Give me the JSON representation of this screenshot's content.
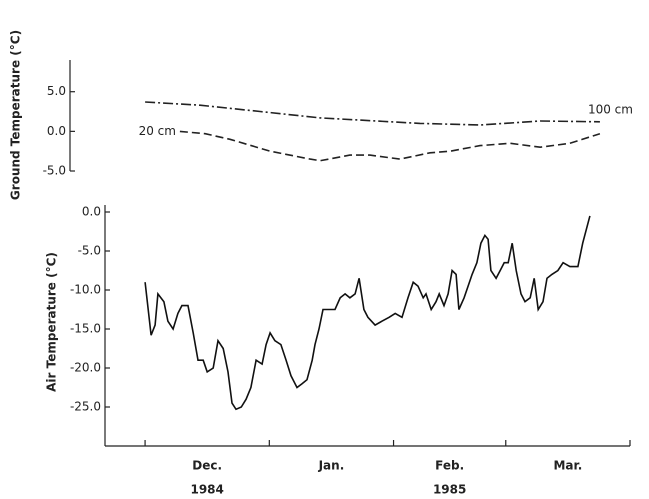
{
  "chart_data": [
    {
      "type": "line",
      "ylabel": "Ground Temperature (°C)",
      "ylim": [
        -5,
        9
      ],
      "yticks": [
        {
          "value": 5,
          "label": "5.0"
        },
        {
          "value": 0,
          "label": "0.0"
        },
        {
          "value": -5,
          "label": "-5.0"
        }
      ],
      "xlim": [
        -10,
        121
      ],
      "series": [
        {
          "name": "100 cm",
          "color": "#222222",
          "linestyle": "dashdot",
          "x": [
            0,
            13.7,
            28.7,
            43.7,
            68.6,
            83.6,
            98.6,
            113.5
          ],
          "values": [
            3.7,
            3.3,
            2.5,
            1.7,
            1.0,
            0.8,
            1.3,
            1.2
          ]
        },
        {
          "name": "20 cm",
          "color": "#222222",
          "linestyle": "dashed",
          "x": [
            8.7,
            15,
            21.2,
            31.2,
            41.2,
            43.7,
            51.1,
            56.1,
            63.6,
            71.1,
            76.1,
            83.6,
            91.1,
            98.6,
            106,
            113.5
          ],
          "values": [
            0,
            -0.3,
            -1,
            -2.5,
            -3.5,
            -3.7,
            -3,
            -3,
            -3.5,
            -2.7,
            -2.5,
            -1.8,
            -1.5,
            -2,
            -1.5,
            -0.3
          ]
        }
      ]
    },
    {
      "type": "line",
      "ylabel": "Air Temperature (°C)",
      "ylim": [
        -30,
        0
      ],
      "yticks": [
        {
          "value": 0,
          "label": "0.0"
        },
        {
          "value": -5,
          "label": "-5.0"
        },
        {
          "value": -10,
          "label": "-10.0"
        },
        {
          "value": -15,
          "label": "-15.0"
        },
        {
          "value": -20,
          "label": "-20.0"
        },
        {
          "value": -25,
          "label": "-25.0"
        }
      ],
      "xlim": [
        -10,
        121
      ],
      "xticks": [
        0,
        31,
        62,
        90,
        121
      ],
      "categories": [
        "Dec.",
        "Jan.",
        "Feb.",
        "Mar."
      ],
      "category_years": [
        "1984",
        null,
        "1985",
        null
      ],
      "series": [
        {
          "name": "Air",
          "color": "#111111",
          "x": [
            0,
            1.5,
            2.5,
            3.2,
            4.7,
            5.7,
            7,
            8.2,
            9.2,
            10.7,
            12,
            13.2,
            14.5,
            15.5,
            17,
            18.2,
            19.5,
            20.7,
            21.7,
            22.7,
            24,
            25.2,
            26.4,
            27.7,
            29.2,
            30.2,
            31.2,
            32.4,
            33.9,
            35.2,
            36.4,
            37.9,
            39.2,
            40.4,
            41.7,
            42.4,
            43.4,
            44.4,
            45.7,
            47.4,
            48.7,
            49.9,
            51.1,
            52.4,
            53.4,
            54.6,
            55.6,
            57.4,
            59.1,
            60.9,
            62.4,
            64.1,
            65.6,
            66.9,
            68.1,
            69.4,
            70.1,
            71.4,
            72.6,
            73.4,
            74.6,
            75.6,
            76.6,
            77.6,
            78.3,
            79.6,
            80.6,
            81.6,
            82.8,
            83.8,
            84.8,
            85.6,
            86.3,
            87.6,
            88.6,
            89.6,
            90.6,
            91.6,
            92.6,
            93.8,
            94.8,
            96.1,
            97.1,
            98.1,
            99.3,
            100.3,
            101.5,
            103,
            104.3,
            106,
            108,
            109.2,
            111
          ],
          "values": [
            -9,
            -15.8,
            -14.5,
            -10.5,
            -11.5,
            -14,
            -15,
            -13,
            -12,
            -12,
            -15.5,
            -19,
            -19,
            -20.5,
            -20,
            -16.5,
            -17.5,
            -20.5,
            -24.5,
            -25.3,
            -25,
            -24,
            -22.5,
            -19,
            -19.5,
            -17,
            -15.5,
            -16.5,
            -17,
            -19,
            -21,
            -22.5,
            -22,
            -21.5,
            -19,
            -17,
            -15,
            -12.5,
            -12.5,
            -12.5,
            -11,
            -10.5,
            -11,
            -10.5,
            -8.5,
            -12.5,
            -13.5,
            -14.5,
            -14,
            -13.5,
            -13,
            -13.5,
            -11,
            -9,
            -9.5,
            -11,
            -10.5,
            -12.5,
            -11.5,
            -10.5,
            -12,
            -10.5,
            -7.5,
            -8,
            -12.5,
            -11,
            -9.5,
            -8,
            -6.5,
            -4,
            -3,
            -3.5,
            -7.5,
            -8.5,
            -7.5,
            -6.5,
            -6.5,
            -4,
            -7.5,
            -10.5,
            -11.5,
            -11,
            -8.5,
            -12.5,
            -11.5,
            -8.5,
            -8,
            -7.5,
            -6.5,
            -7,
            -7,
            -4,
            -0.5
          ]
        }
      ]
    }
  ]
}
